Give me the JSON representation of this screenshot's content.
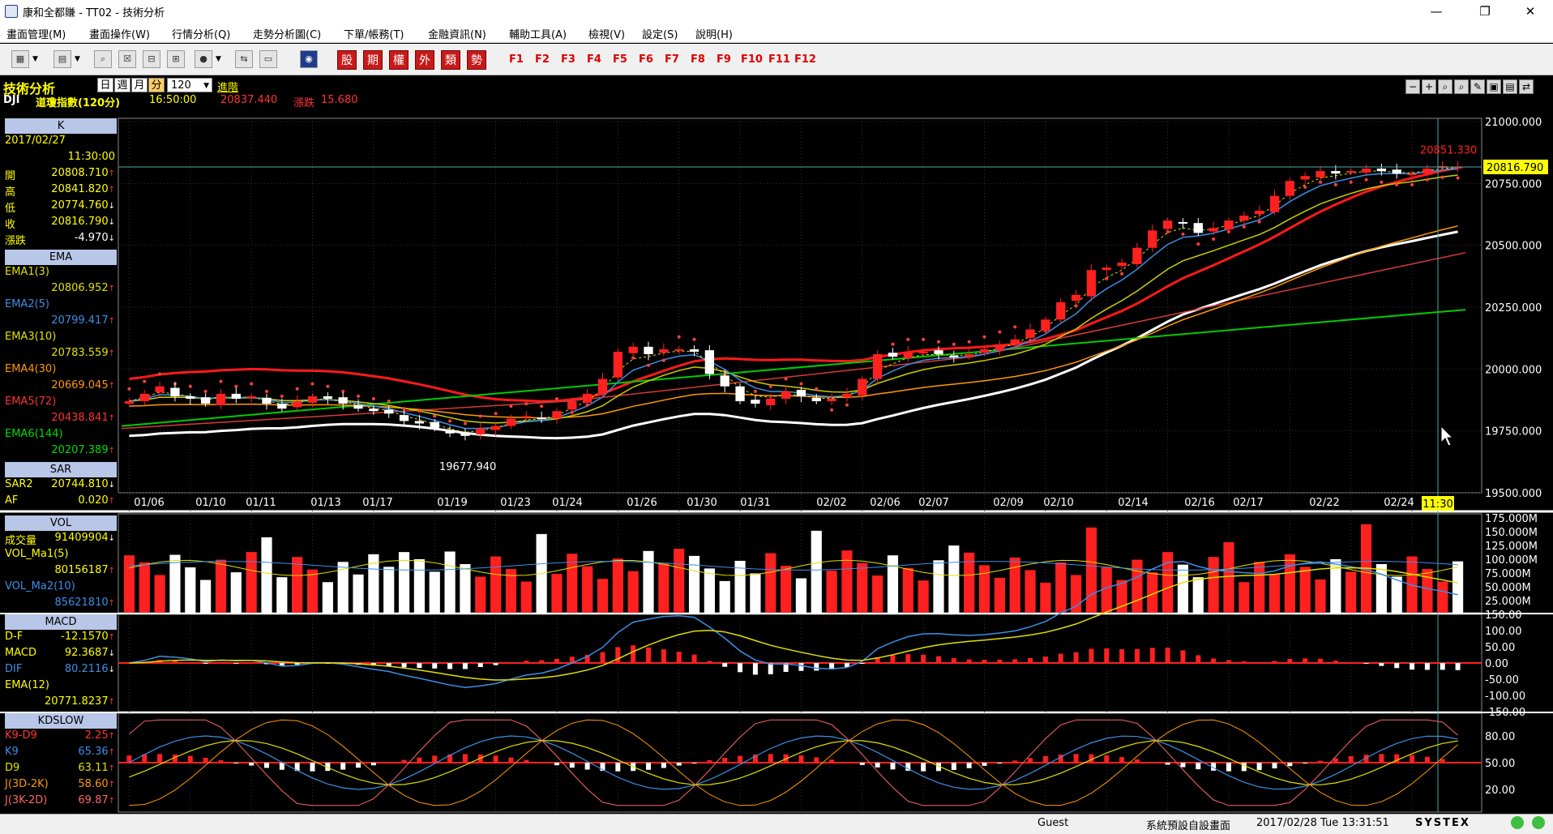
{
  "window": {
    "title": "康和全都賺 - TT02 - 技術分析",
    "controls": [
      "—",
      "❐",
      "✕"
    ]
  },
  "menu": [
    "畫面管理(M)",
    "畫面操作(W)",
    "行情分析(Q)",
    "走勢分析圖(C)",
    "下單/帳務(T)",
    "金融資訊(N)",
    "輔助工具(A)",
    "檢視(V)",
    "設定(S)",
    "說明(H)"
  ],
  "toolbar": {
    "quote_buttons": [
      "股",
      "期",
      "權",
      "外",
      "類",
      "勢"
    ],
    "fkeys": [
      "F1",
      "F2",
      "F3",
      "F4",
      "F5",
      "F6",
      "F7",
      "F8",
      "F9",
      "F10",
      "F11",
      "F12"
    ]
  },
  "header": {
    "module": "技術分析",
    "period_buttons": [
      "日",
      "週",
      "月",
      "分"
    ],
    "period_value": "120",
    "advanced": "進階",
    "symbol": "DJI",
    "name": "道瓊指數(120分)",
    "time": "16:50:00",
    "price": "20837.440",
    "change_label": "漲跌",
    "change": "15.680",
    "view_buttons": [
      "−",
      "+",
      "⌕",
      "⌕",
      "✎",
      "▣",
      "▤",
      "⇄"
    ]
  },
  "panels": {
    "k": {
      "title": "K",
      "date": "2017/02/27",
      "time": "11:30:00",
      "rows": [
        {
          "name": "開",
          "value": "20808.710",
          "dir": "up"
        },
        {
          "name": "高",
          "value": "20841.820",
          "dir": "up"
        },
        {
          "name": "低",
          "value": "20774.760",
          "dir": "down"
        },
        {
          "name": "收",
          "value": "20816.790",
          "dir": "down"
        },
        {
          "name": "漲跌",
          "value": "-4.970",
          "dir": "down"
        }
      ]
    },
    "ema": {
      "title": "EMA",
      "rows": [
        {
          "name": "EMA1(3)",
          "value": "20806.952",
          "color": "#e0e000"
        },
        {
          "name": "EMA2(5)",
          "value": "20799.417",
          "color": "#3b8fe8"
        },
        {
          "name": "EMA3(10)",
          "value": "20783.559",
          "color": "#e0e000"
        },
        {
          "name": "EMA4(30)",
          "value": "20669.045",
          "color": "#ff9900"
        },
        {
          "name": "EMA5(72)",
          "value": "20438.841",
          "color": "#ff3333"
        },
        {
          "name": "EMA6(144)",
          "value": "20207.389",
          "color": "#00dd00"
        }
      ]
    },
    "sar": {
      "title": "SAR",
      "rows": [
        {
          "name": "SAR2",
          "value": "20744.810",
          "dir": "down"
        },
        {
          "name": "AF",
          "value": "0.020",
          "dir": "up"
        }
      ]
    },
    "vol": {
      "title": "VOL",
      "rows": [
        {
          "name": "成交量",
          "value": "91409904",
          "dir": "down"
        },
        {
          "name": "VOL_Ma1(5)",
          "value": "80156187",
          "dir": "up"
        },
        {
          "name": "VOL_Ma2(10)",
          "value": "85621810",
          "dir": "up"
        }
      ]
    },
    "macd": {
      "title": "MACD",
      "rows": [
        {
          "name": "D-F",
          "value": "-12.1570",
          "dir": "up"
        },
        {
          "name": "MACD",
          "value": "92.3687",
          "dir": "down"
        },
        {
          "name": "DIF",
          "value": "80.2116",
          "dir": "down"
        },
        {
          "name": "EMA(12)",
          "value": "20771.8237",
          "dir": "up"
        }
      ]
    },
    "kd": {
      "title": "KDSLOW",
      "rows": [
        {
          "name": "K9-D9",
          "value": "2.25",
          "dir": "up"
        },
        {
          "name": "K9",
          "value": "65.36",
          "dir": "up"
        },
        {
          "name": "D9",
          "value": "63.11",
          "dir": "up"
        },
        {
          "name": "J(3D-2K)",
          "value": "58.60",
          "dir": "up"
        },
        {
          "name": "J(3K-2D)",
          "value": "69.87",
          "dir": "up"
        }
      ]
    }
  },
  "chart": {
    "price_axis": [
      "21000.000",
      "20750.000",
      "20500.000",
      "20250.000",
      "20000.000",
      "19750.000",
      "19500.000"
    ],
    "current_price_tag": "20816.790",
    "high_label": "20851.330",
    "low_label": "19677.940",
    "date_labels": [
      "01/06",
      "01/10",
      "01/11",
      "01/13",
      "01/17",
      "01/19",
      "01/23",
      "01/24",
      "01/26",
      "01/30",
      "01/31",
      "02/02",
      "02/06",
      "02/07",
      "02/09",
      "02/10",
      "02/14",
      "02/16",
      "02/17",
      "02/22",
      "02/24"
    ],
    "cursor_time": "11:30",
    "vol_axis": [
      "175.000M",
      "150.000M",
      "125.000M",
      "100.000M",
      "75.000M",
      "50.000M",
      "25.000M"
    ],
    "macd_axis": [
      "150.00",
      "100.00",
      "50.00",
      "0.00",
      "-50.00",
      "-100.00",
      "-150.00"
    ],
    "kd_axis": [
      "80.00",
      "50.00",
      "20.00"
    ]
  },
  "chart_data": {
    "type": "candlestick",
    "symbol": "DJI",
    "interval": "120分",
    "ylim": [
      19500,
      21000
    ],
    "close_series": [
      19870,
      19900,
      19930,
      19890,
      19880,
      19860,
      19900,
      19880,
      19890,
      19860,
      19840,
      19870,
      19890,
      19880,
      19860,
      19840,
      19830,
      19820,
      19790,
      19780,
      19760,
      19740,
      19730,
      19760,
      19770,
      19800,
      19810,
      19800,
      19830,
      19870,
      19900,
      19960,
      20070,
      20090,
      20060,
      20080,
      20080,
      20070,
      19980,
      19930,
      19870,
      19860,
      19880,
      19910,
      19890,
      19870,
      19880,
      19900,
      19960,
      20060,
      20050,
      20070,
      20070,
      20060,
      20050,
      20060,
      20080,
      20100,
      20120,
      20160,
      20200,
      20270,
      20300,
      20400,
      20410,
      20430,
      20490,
      20560,
      20600,
      20590,
      20550,
      20570,
      20600,
      20620,
      20640,
      20700,
      20760,
      20780,
      20800,
      20790,
      20800,
      20810,
      20800,
      20790,
      20790,
      20810,
      20820,
      20817
    ]
  }
}
